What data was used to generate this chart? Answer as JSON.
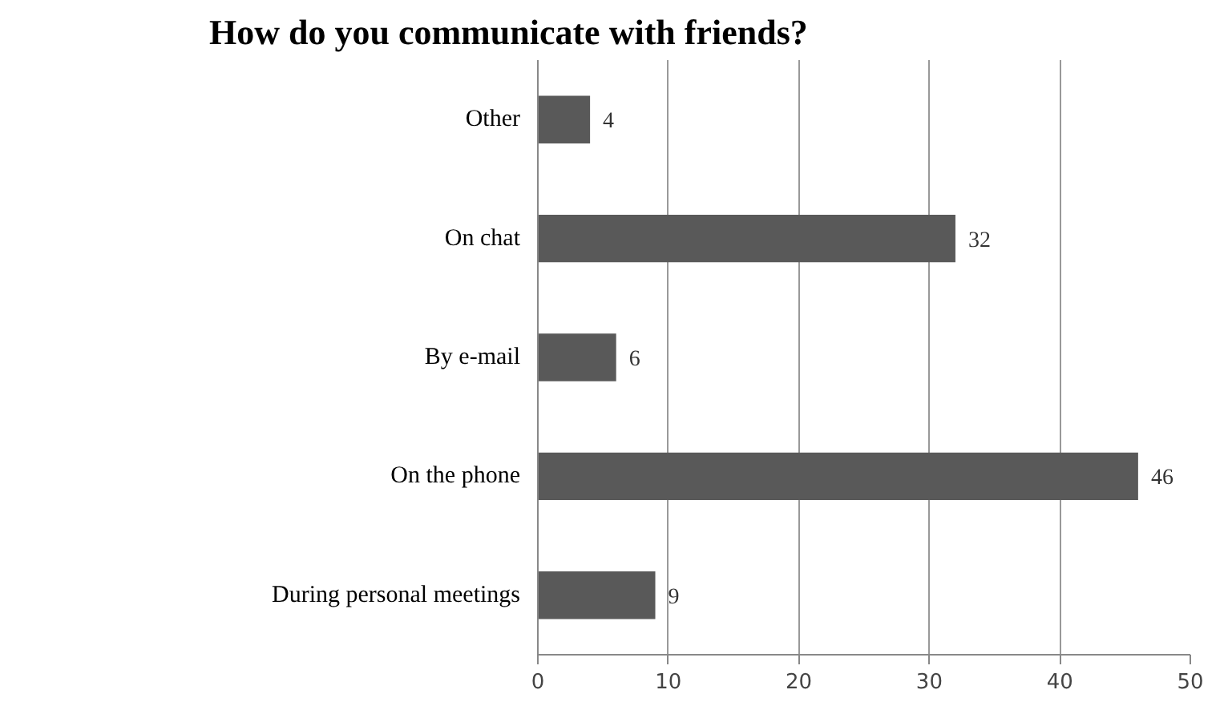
{
  "chart_data": {
    "type": "bar",
    "orientation": "horizontal",
    "title": "How do you communicate with friends?",
    "categories": [
      "Other",
      "On chat",
      "By e-mail",
      "On the phone",
      "During personal meetings"
    ],
    "values": [
      4,
      32,
      6,
      46,
      9
    ],
    "color": "#595959",
    "xlim": [
      0,
      50
    ],
    "xticks": [
      0,
      10,
      20,
      30,
      40,
      50
    ],
    "grid": "x",
    "data_labels": true
  }
}
